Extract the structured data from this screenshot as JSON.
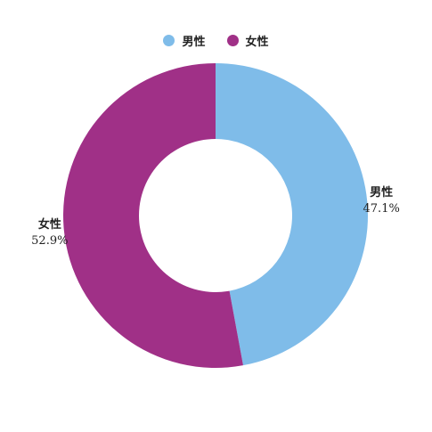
{
  "chart_data": {
    "type": "pie",
    "style": "donut",
    "legend_position": "top",
    "categories": [
      "男性",
      "女性"
    ],
    "values": [
      47.1,
      52.9
    ],
    "value_labels": [
      "47.1%",
      "52.9%"
    ],
    "colors": [
      "#7fbce9",
      "#a03087"
    ]
  }
}
